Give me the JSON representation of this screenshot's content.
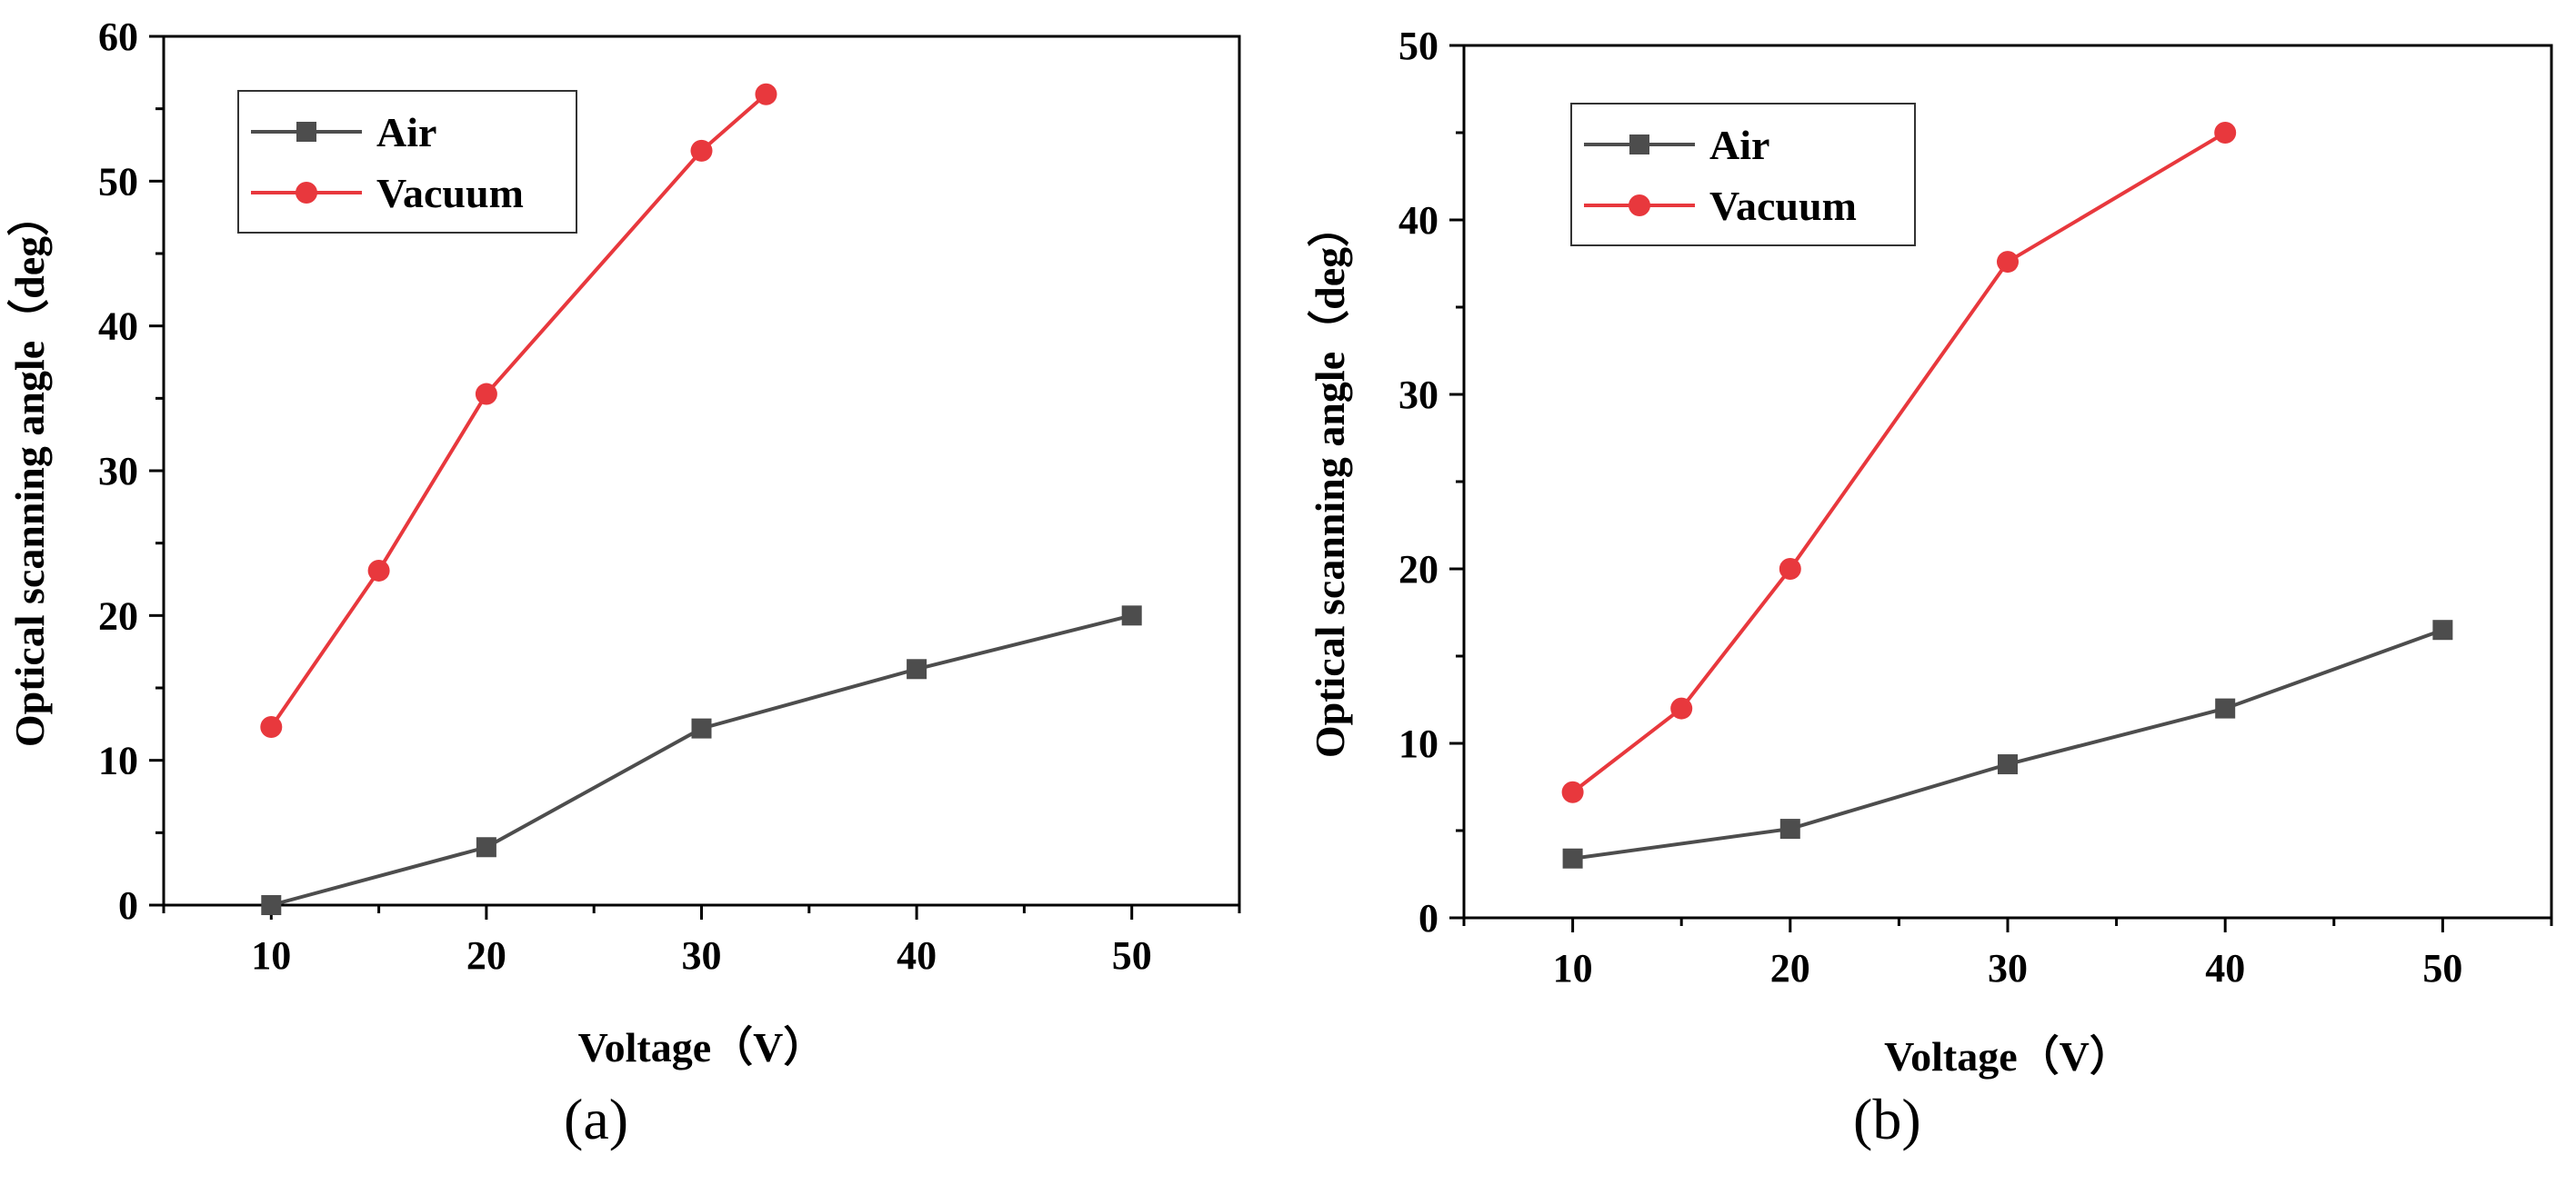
{
  "colors": {
    "air": "#4d4d4d",
    "vacuum": "#e8383d",
    "axis": "#000000"
  },
  "chart_data": [
    {
      "type": "line",
      "panel_label": "(a)",
      "xlabel": "Voltage（V）",
      "ylabel": "Optical scanning angle（deg）",
      "xlim": [
        5,
        55
      ],
      "ylim": [
        0,
        60
      ],
      "xticks": [
        10,
        20,
        30,
        40,
        50
      ],
      "yticks": [
        0,
        10,
        20,
        30,
        40,
        50,
        60
      ],
      "grid": false,
      "legend_position": "top-left",
      "series": [
        {
          "name": "Air",
          "marker": "square",
          "color": "#4d4d4d",
          "x": [
            10,
            20,
            30,
            40,
            50
          ],
          "y": [
            0,
            4,
            12.2,
            16.3,
            20
          ]
        },
        {
          "name": "Vacuum",
          "marker": "circle",
          "color": "#e8383d",
          "x": [
            10,
            15,
            20,
            30,
            33
          ],
          "y": [
            12.3,
            23.1,
            35.3,
            52.1,
            56
          ]
        }
      ]
    },
    {
      "type": "line",
      "panel_label": "(b)",
      "xlabel": "Voltage（V）",
      "ylabel": "Optical scanning angle（deg）",
      "xlim": [
        5,
        55
      ],
      "ylim": [
        0,
        50
      ],
      "xticks": [
        10,
        20,
        30,
        40,
        50
      ],
      "yticks": [
        0,
        10,
        20,
        30,
        40,
        50
      ],
      "grid": false,
      "legend_position": "top-left",
      "series": [
        {
          "name": "Air",
          "marker": "square",
          "color": "#4d4d4d",
          "x": [
            10,
            20,
            30,
            40,
            50
          ],
          "y": [
            3.4,
            5.1,
            8.8,
            12,
            16.5
          ]
        },
        {
          "name": "Vacuum",
          "marker": "circle",
          "color": "#e8383d",
          "x": [
            10,
            15,
            20,
            30,
            40
          ],
          "y": [
            7.2,
            12,
            20,
            37.6,
            45
          ]
        }
      ]
    }
  ]
}
